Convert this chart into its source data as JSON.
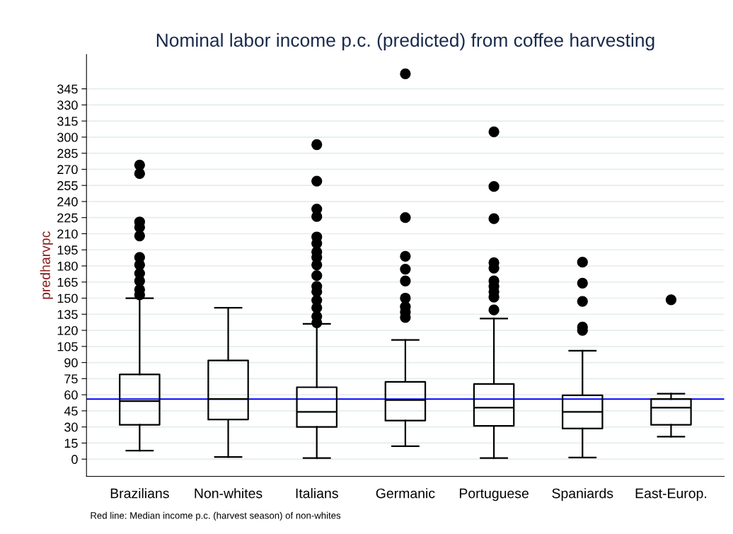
{
  "chart_data": {
    "type": "box",
    "title": "Nominal labor income p.c. (predicted) from coffee harvesting",
    "ylabel": "predharvpc",
    "categories": [
      "Brazilians",
      "Non-whites",
      "Italians",
      "Germanic",
      "Portuguese",
      "Spaniards",
      "East-Europ."
    ],
    "boxes": [
      {
        "low": 8,
        "q1": 32,
        "median": 54,
        "q3": 79,
        "high": 150,
        "outliers": [
          274,
          266,
          221,
          216,
          208,
          188,
          181,
          173,
          166,
          158,
          153
        ]
      },
      {
        "low": 2,
        "q1": 37,
        "median": 56,
        "q3": 92,
        "high": 141
      },
      {
        "low": 1,
        "q1": 30,
        "median": 44,
        "q3": 67,
        "high": 126,
        "outliers": [
          293,
          259,
          233,
          226,
          207,
          201,
          193,
          188,
          181,
          171,
          161,
          156,
          148,
          141,
          133,
          127
        ]
      },
      {
        "low": 12,
        "q1": 36,
        "median": 55,
        "q3": 72,
        "high": 111,
        "outliers": [
          359,
          225,
          189,
          177,
          166,
          150,
          142,
          137,
          132
        ]
      },
      {
        "low": 1,
        "q1": 31,
        "median": 48,
        "q3": 70,
        "high": 131,
        "outliers": [
          305,
          254,
          224,
          183,
          178,
          166,
          161,
          156,
          151,
          139
        ]
      },
      {
        "low": 1.5,
        "q1": 28.6,
        "median": 44,
        "q3": 59.5,
        "high": 101,
        "outliers": [
          183.5,
          164,
          147,
          123,
          120
        ]
      },
      {
        "low": 21,
        "q1": 32,
        "median": 48,
        "q3": 56,
        "high": 61,
        "outliers": [
          148.5
        ]
      }
    ],
    "color": "#000000",
    "ylim": [
      -16,
      377
    ],
    "yticks": [
      0,
      15,
      30,
      45,
      60,
      75,
      90,
      105,
      120,
      135,
      150,
      165,
      180,
      195,
      210,
      225,
      240,
      255,
      270,
      285,
      300,
      315,
      330,
      345
    ],
    "grid": "y",
    "ref_lines": [
      {
        "axis": "y",
        "value": 56,
        "color": "#0000ff",
        "line_style": "solid"
      }
    ],
    "annotations": [
      "Red line: Median income p.c. (harvest season) of non-whites"
    ]
  }
}
